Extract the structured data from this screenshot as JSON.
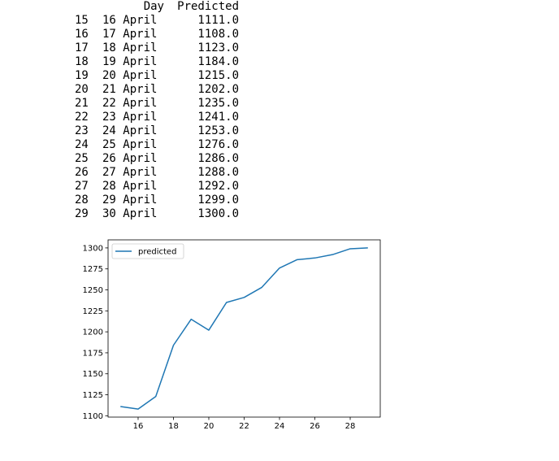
{
  "table": {
    "columns": [
      "Day",
      "Predicted"
    ],
    "rows": [
      {
        "index": "15",
        "day": "16 April",
        "predicted": "1111.0"
      },
      {
        "index": "16",
        "day": "17 April",
        "predicted": "1108.0"
      },
      {
        "index": "17",
        "day": "18 April",
        "predicted": "1123.0"
      },
      {
        "index": "18",
        "day": "19 April",
        "predicted": "1184.0"
      },
      {
        "index": "19",
        "day": "20 April",
        "predicted": "1215.0"
      },
      {
        "index": "20",
        "day": "21 April",
        "predicted": "1202.0"
      },
      {
        "index": "21",
        "day": "22 April",
        "predicted": "1235.0"
      },
      {
        "index": "22",
        "day": "23 April",
        "predicted": "1241.0"
      },
      {
        "index": "23",
        "day": "24 April",
        "predicted": "1253.0"
      },
      {
        "index": "24",
        "day": "25 April",
        "predicted": "1276.0"
      },
      {
        "index": "25",
        "day": "26 April",
        "predicted": "1286.0"
      },
      {
        "index": "26",
        "day": "27 April",
        "predicted": "1288.0"
      },
      {
        "index": "27",
        "day": "28 April",
        "predicted": "1292.0"
      },
      {
        "index": "28",
        "day": "29 April",
        "predicted": "1299.0"
      },
      {
        "index": "29",
        "day": "30 April",
        "predicted": "1300.0"
      }
    ]
  },
  "chart_data": {
    "type": "line",
    "series": [
      {
        "name": "predicted",
        "color": "#1f77b4",
        "x": [
          15,
          16,
          17,
          18,
          19,
          20,
          21,
          22,
          23,
          24,
          25,
          26,
          27,
          28,
          29
        ],
        "y": [
          1111,
          1108,
          1123,
          1184,
          1215,
          1202,
          1235,
          1241,
          1253,
          1276,
          1286,
          1288,
          1292,
          1299,
          1300
        ]
      }
    ],
    "xticks": [
      16,
      18,
      20,
      22,
      24,
      26,
      28
    ],
    "yticks": [
      1100,
      1125,
      1150,
      1175,
      1200,
      1225,
      1250,
      1275,
      1300
    ],
    "xlim": [
      14.3,
      29.7
    ],
    "ylim": [
      1098.4,
      1309.6
    ],
    "legend": "upper-left",
    "grid": false,
    "title": "",
    "xlabel": "",
    "ylabel": ""
  }
}
